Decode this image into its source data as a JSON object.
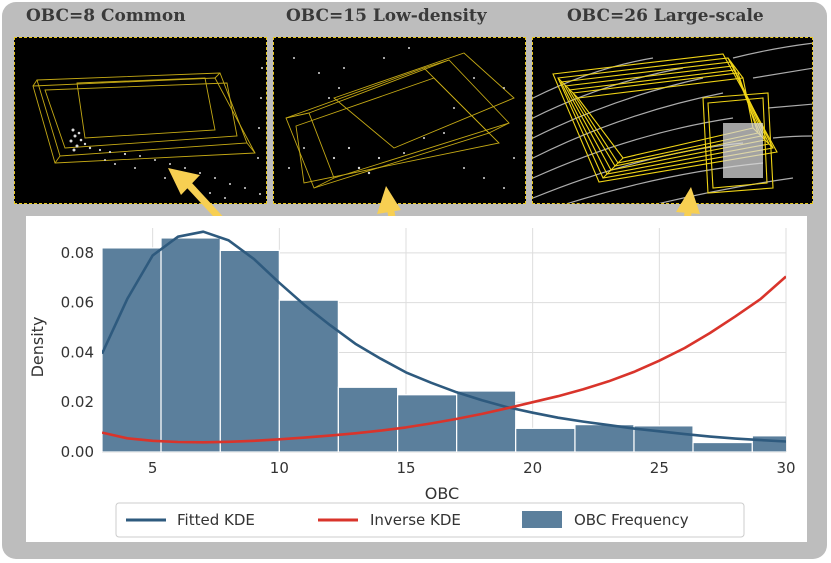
{
  "panels": [
    {
      "title": "OBC=8 Common",
      "obc": 8
    },
    {
      "title": "OBC=15 Low-density",
      "obc": 15
    },
    {
      "title": "OBC=26 Large-scale",
      "obc": 26
    }
  ],
  "colors": {
    "frame": "#bdbdbd",
    "bars": "#5b7f9c",
    "fitted": "#2e5a7e",
    "inverse": "#d9342b",
    "arrow": "#f7cf52",
    "box": "#e6c619",
    "grid": "#dddddd",
    "points": "#d8d8d8"
  },
  "chart_data": {
    "type": "bar",
    "title": "",
    "xlabel": "OBC",
    "ylabel": "Density",
    "xlim": [
      3,
      30
    ],
    "ylim": [
      0,
      0.09
    ],
    "xticks": [
      5,
      10,
      15,
      20,
      25,
      30
    ],
    "yticks": [
      0.0,
      0.02,
      0.04,
      0.06,
      0.08
    ],
    "ytick_labels": [
      "0.00",
      "0.02",
      "0.04",
      "0.06",
      "0.08"
    ],
    "bins": [
      3,
      5.33,
      7.67,
      10,
      12.33,
      14.67,
      17,
      19.33,
      21.67,
      24,
      26.33,
      28.67,
      31
    ],
    "histogram": {
      "name": "OBC Frequency",
      "values": [
        0.082,
        0.086,
        0.081,
        0.061,
        0.026,
        0.023,
        0.0245,
        0.0095,
        0.011,
        0.0105,
        0.0038,
        0.0065
      ]
    },
    "series": [
      {
        "name": "Fitted KDE",
        "x": [
          3,
          4,
          5,
          6,
          7,
          8,
          9,
          10,
          11,
          12,
          13,
          14,
          15,
          16,
          17,
          18,
          19,
          20,
          21,
          22,
          23,
          24,
          25,
          26,
          27,
          28,
          29,
          30
        ],
        "values": [
          0.0395,
          0.0615,
          0.079,
          0.0865,
          0.0885,
          0.085,
          0.0775,
          0.068,
          0.059,
          0.051,
          0.0435,
          0.0375,
          0.032,
          0.0278,
          0.024,
          0.0208,
          0.018,
          0.0158,
          0.0138,
          0.0122,
          0.0108,
          0.0094,
          0.0083,
          0.0072,
          0.0062,
          0.0054,
          0.0048,
          0.0042
        ]
      },
      {
        "name": "Inverse KDE",
        "x": [
          3,
          4,
          5,
          6,
          7,
          8,
          9,
          10,
          11,
          12,
          13,
          14,
          15,
          16,
          17,
          18,
          19,
          20,
          21,
          22,
          23,
          24,
          25,
          26,
          27,
          28,
          29,
          30
        ],
        "values": [
          0.0078,
          0.0055,
          0.0045,
          0.004,
          0.0039,
          0.0041,
          0.0045,
          0.0051,
          0.0058,
          0.0066,
          0.0075,
          0.0086,
          0.0099,
          0.0115,
          0.0133,
          0.0153,
          0.0176,
          0.02,
          0.0224,
          0.0252,
          0.0284,
          0.0322,
          0.0367,
          0.0418,
          0.0478,
          0.0545,
          0.0615,
          0.0705
        ]
      }
    ],
    "legend": [
      "Fitted KDE",
      "Inverse KDE",
      "OBC Frequency"
    ],
    "legend_position": "bottom-center",
    "grid": true
  }
}
